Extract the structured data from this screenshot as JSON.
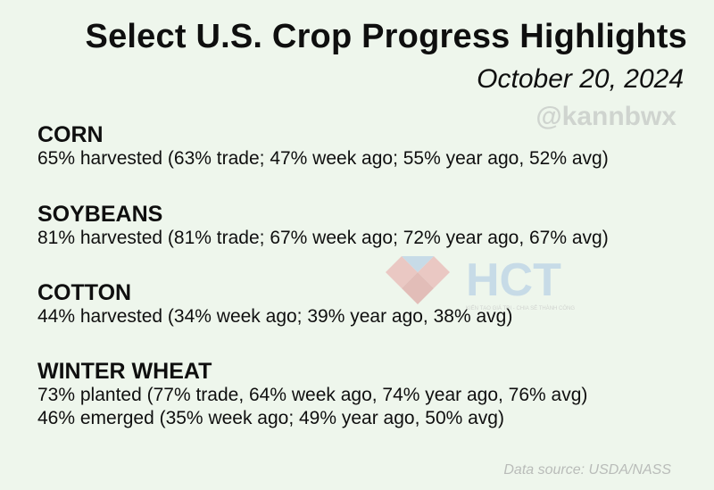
{
  "header": {
    "title": "Select U.S. Crop Progress Highlights",
    "date": "October 20, 2024",
    "handle": "@kannbwx"
  },
  "crops": [
    {
      "name": "CORN",
      "lines": [
        "65% harvested (63% trade; 47% week ago; 55% year ago, 52% avg)"
      ]
    },
    {
      "name": "SOYBEANS",
      "lines": [
        "81% harvested (81% trade; 67% week ago; 72% year ago, 67% avg)"
      ]
    },
    {
      "name": "COTTON",
      "lines": [
        "44% harvested (34% week ago; 39% year ago, 38% avg)"
      ]
    },
    {
      "name": "WINTER WHEAT",
      "lines": [
        "73% planted (77% trade, 64% week ago, 74% year ago, 76% avg)",
        "46% emerged (35% week ago; 49% year ago, 50% avg)"
      ]
    }
  ],
  "watermark": {
    "logo_text": "HCT",
    "tagline": "KIẾN TẠO GIÁ TRỊ - CHIA SẺ THÀNH CÔNG",
    "colors": {
      "red": "#e7a3a3",
      "blue": "#a9c6e4"
    }
  },
  "footer": {
    "source": "Data source: USDA/NASS"
  },
  "colors": {
    "background": "#eef6ec",
    "text": "#0f0f0f"
  }
}
